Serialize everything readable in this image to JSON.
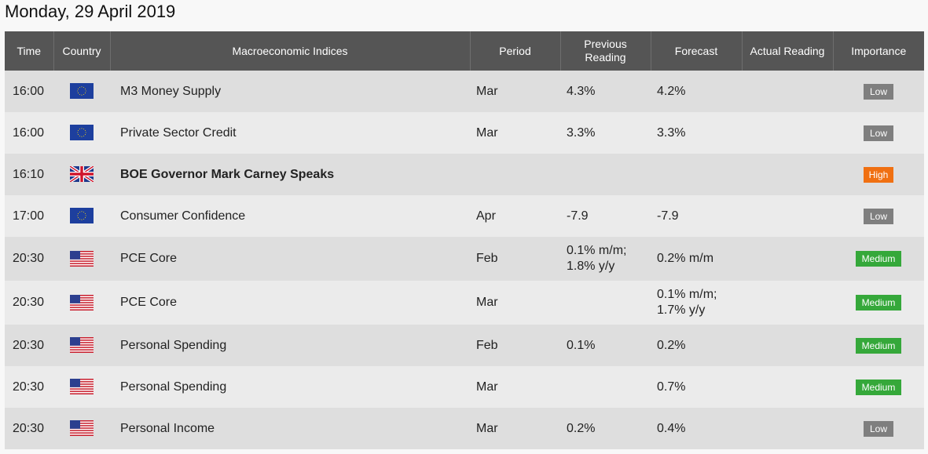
{
  "page": {
    "title": "Monday, 29 April 2019"
  },
  "columns": {
    "time": "Time",
    "country": "Country",
    "indices": "Macroeconomic Indices",
    "period": "Period",
    "previous": "Previous Reading",
    "forecast": "Forecast",
    "actual": "Actual Reading",
    "importance": "Importance"
  },
  "colors": {
    "header_bg": "#555555",
    "row_dark": "#dedede",
    "row_light": "#ebebeb",
    "low": "#7f7f7f",
    "medium": "#35a83a",
    "high": "#f07012"
  },
  "events": [
    {
      "time": "16:00",
      "flag": "eu-flag-icon",
      "name": "M3 Money Supply",
      "period": "Mar",
      "previous": "4.3%",
      "forecast": "4.2%",
      "actual": "",
      "importance": "Low"
    },
    {
      "time": "16:00",
      "flag": "eu-flag-icon",
      "name": "Private Sector Credit",
      "period": "Mar",
      "previous": "3.3%",
      "forecast": "3.3%",
      "actual": "",
      "importance": "Low"
    },
    {
      "time": "16:10",
      "flag": "uk-flag-icon",
      "name": "BOE Governor Mark Carney Speaks",
      "period": "",
      "previous": "",
      "forecast": "",
      "actual": "",
      "importance": "High"
    },
    {
      "time": "17:00",
      "flag": "eu-flag-icon",
      "name": "Consumer Confidence",
      "period": "Apr",
      "previous": "-7.9",
      "forecast": "-7.9",
      "actual": "",
      "importance": "Low"
    },
    {
      "time": "20:30",
      "flag": "us-flag-icon",
      "name": "PCE Core",
      "period": "Feb",
      "previous_l1": "0.1% m/m;",
      "previous_l2": "1.8% y/y",
      "forecast": "0.2% m/m",
      "actual": "",
      "importance": "Medium"
    },
    {
      "time": "20:30",
      "flag": "us-flag-icon",
      "name": "PCE Core",
      "period": "Mar",
      "previous": "",
      "forecast_l1": "0.1% m/m;",
      "forecast_l2": "1.7% y/y",
      "actual": "",
      "importance": "Medium"
    },
    {
      "time": "20:30",
      "flag": "us-flag-icon",
      "name": "Personal Spending",
      "period": "Feb",
      "previous": "0.1%",
      "forecast": "0.2%",
      "actual": "",
      "importance": "Medium"
    },
    {
      "time": "20:30",
      "flag": "us-flag-icon",
      "name": "Personal Spending",
      "period": "Mar",
      "previous": "",
      "forecast": "0.7%",
      "actual": "",
      "importance": "Medium"
    },
    {
      "time": "20:30",
      "flag": "us-flag-icon",
      "name": "Personal Income",
      "period": "Mar",
      "previous": "0.2%",
      "forecast": "0.4%",
      "actual": "",
      "importance": "Low"
    }
  ]
}
